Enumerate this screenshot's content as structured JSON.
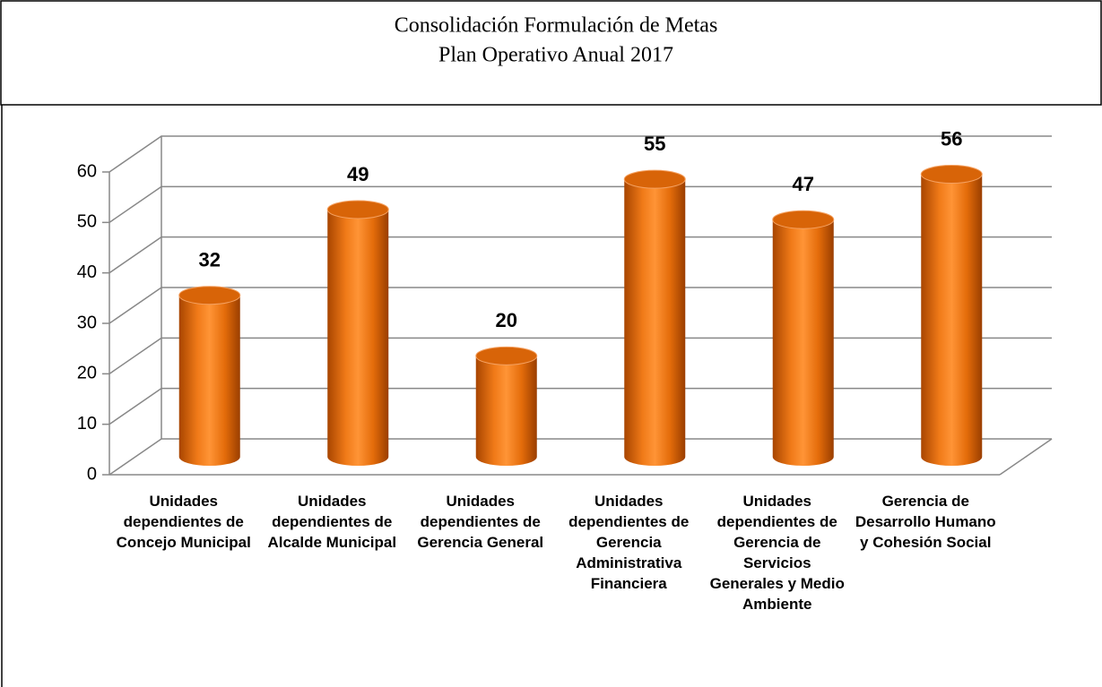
{
  "chart_data": {
    "type": "bar",
    "title": "Consolidación Formulación de Metas",
    "subtitle": "Plan Operativo Anual 2017",
    "categories": [
      "Unidades dependientes de Concejo Municipal",
      "Unidades dependientes de Alcalde Municipal",
      "Unidades dependientes de Gerencia General",
      "Unidades dependientes de Gerencia Administrativa Financiera",
      "Unidades dependientes de Gerencia de Servicios Generales y Medio Ambiente",
      "Gerencia de Desarrollo Humano y Cohesión Social"
    ],
    "values": [
      32,
      49,
      20,
      55,
      47,
      56
    ],
    "color": "#e46c0a",
    "ylim": [
      0,
      60
    ],
    "yticks": [
      0,
      10,
      20,
      30,
      40,
      50,
      60
    ],
    "grid": true
  }
}
